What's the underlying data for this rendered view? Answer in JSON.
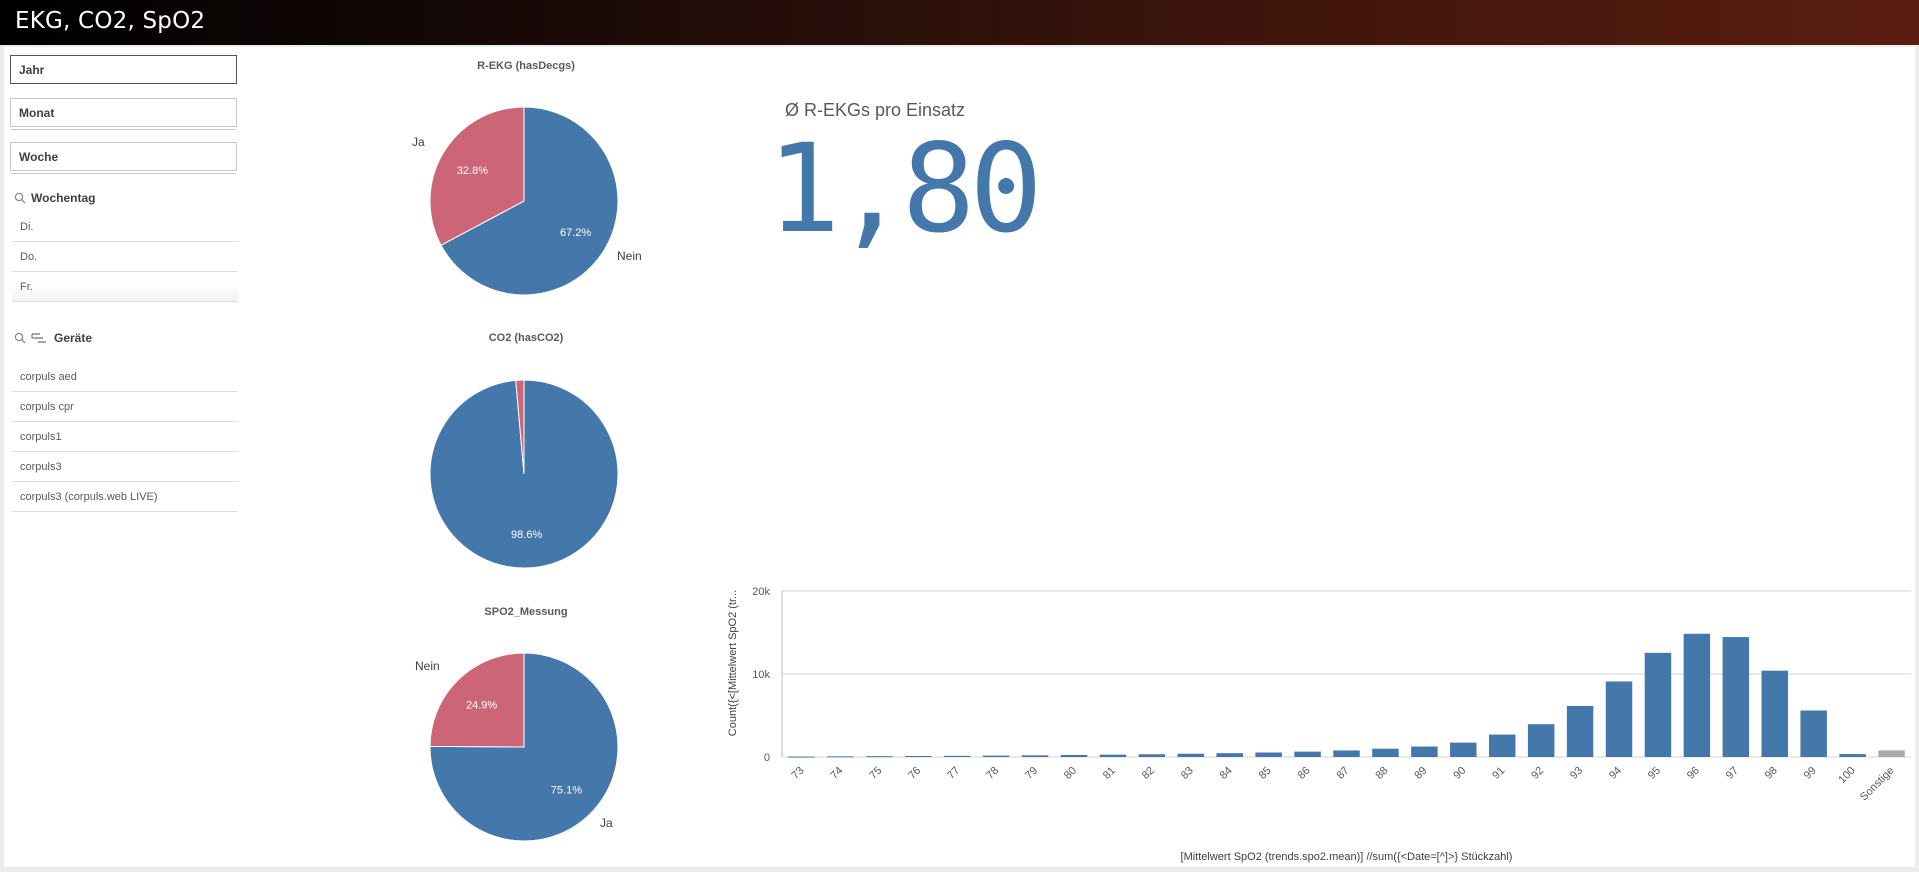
{
  "app": {
    "title": "EKG, CO2, SpO2"
  },
  "filters": {
    "jahr": "Jahr",
    "monat": "Monat",
    "woche": "Woche"
  },
  "wochentag": {
    "title": "Wochentag",
    "items": [
      "Di.",
      "Do.",
      "Fr."
    ]
  },
  "geraete": {
    "title": "Geräte",
    "items": [
      "corpuls aed",
      "corpuls cpr",
      "corpuls1",
      "corpuls3",
      "corpuls3 (corpuls.web LIVE)"
    ]
  },
  "colors": {
    "blue": "#4477aa",
    "red": "#cc6677",
    "other": "#aaaaaa"
  },
  "kpi": {
    "title": "Ø R-EKGs pro Einsatz",
    "value": "1,80"
  },
  "chart_data": [
    {
      "type": "pie",
      "title": "R-EKG (hasDecgs)",
      "slices": [
        {
          "label": "Nein",
          "value": 67.2,
          "display": "67.2%"
        },
        {
          "label": "Ja",
          "value": 32.8,
          "display": "32.8%"
        }
      ]
    },
    {
      "type": "pie",
      "title": "CO2 (hasCO2)",
      "slices": [
        {
          "label": "",
          "value": 98.6,
          "display": "98.6%"
        },
        {
          "label": "",
          "value": 1.4,
          "display": ""
        }
      ]
    },
    {
      "type": "pie",
      "title": "SPO2_Messung",
      "slices": [
        {
          "label": "Ja",
          "value": 75.1,
          "display": "75.1%"
        },
        {
          "label": "Nein",
          "value": 24.9,
          "display": "24.9%"
        }
      ]
    },
    {
      "type": "bar",
      "xlabel": "[Mittelwert SpO2 (trends.spo2.mean)] //sum({<Date=[^]>} Stückzahl)",
      "ylabel": "Count({<[Mittelwert SpO2 (tr...",
      "ylim": [
        0,
        20000
      ],
      "yticks": [
        {
          "value": 0,
          "label": "0"
        },
        {
          "value": 10000,
          "label": "10k"
        },
        {
          "value": 20000,
          "label": "20k"
        }
      ],
      "grid": true,
      "categories": [
        "73",
        "74",
        "75",
        "76",
        "77",
        "78",
        "79",
        "80",
        "81",
        "82",
        "83",
        "84",
        "85",
        "86",
        "87",
        "88",
        "89",
        "90",
        "91",
        "92",
        "93",
        "94",
        "95",
        "96",
        "97",
        "98",
        "99",
        "100",
        "Sonstige"
      ],
      "values": [
        50,
        80,
        100,
        120,
        140,
        170,
        200,
        240,
        280,
        330,
        390,
        460,
        540,
        650,
        790,
        1000,
        1260,
        1730,
        2700,
        3950,
        6150,
        9100,
        12550,
        14850,
        14450,
        10400,
        5600,
        350,
        800
      ]
    }
  ]
}
